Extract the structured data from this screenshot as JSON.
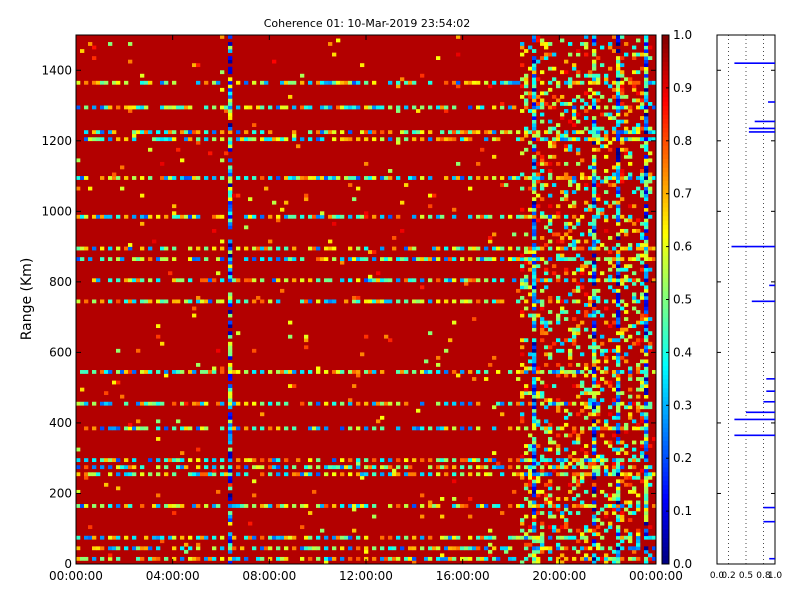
{
  "chart_data": [
    {
      "type": "heatmap",
      "title": "Coherence 01: 10-Mar-2019 23:54:02",
      "xlabel": "",
      "ylabel": "Range (Km)",
      "x_ticks": [
        "00:00:00",
        "04:00:00",
        "08:00:00",
        "12:00:00",
        "16:00:00",
        "20:00:00",
        "00:00:00"
      ],
      "y_ticks": [
        0,
        200,
        400,
        600,
        800,
        1000,
        1200,
        1400
      ],
      "ylim": [
        0,
        1500
      ],
      "x_range_hours": [
        0,
        24
      ],
      "clim": [
        0,
        1
      ],
      "colormap": "jet",
      "colorbar_ticks": [
        "0.0",
        "0.1",
        "0.2",
        "0.3",
        "0.4",
        "0.5",
        "0.6",
        "0.7",
        "0.8",
        "0.9",
        "1.0"
      ],
      "background_value": 0.95,
      "low_coherence_ranges_km": [
        15,
        45,
        75,
        160,
        250,
        270,
        295,
        380,
        450,
        540,
        740,
        800,
        860,
        890,
        980,
        1100,
        1200,
        1230,
        1290,
        1360
      ],
      "low_coherence_time_hours": [
        19.0,
        21.4,
        22.4,
        23.6,
        6.3
      ],
      "grid": false
    },
    {
      "type": "line",
      "title": "",
      "xlabel": "",
      "ylabel": "",
      "xlim": [
        0,
        1.0
      ],
      "x_ticks": [
        "0.0",
        "0.2",
        "0.5",
        "0.8",
        "1.0"
      ],
      "ylim": [
        0,
        1500
      ],
      "grid": true,
      "series": [
        {
          "points": [
            {
              "range": 15,
              "value": 0.9
            },
            {
              "range": 120,
              "value": 0.8
            },
            {
              "range": 160,
              "value": 0.8
            },
            {
              "range": 365,
              "value": 0.3
            },
            {
              "range": 410,
              "value": 0.3
            },
            {
              "range": 430,
              "value": 0.5
            },
            {
              "range": 460,
              "value": 0.8
            },
            {
              "range": 490,
              "value": 0.85
            },
            {
              "range": 525,
              "value": 0.85
            },
            {
              "range": 745,
              "value": 0.6
            },
            {
              "range": 790,
              "value": 0.9
            },
            {
              "range": 900,
              "value": 0.25
            },
            {
              "range": 1225,
              "value": 0.55
            },
            {
              "range": 1235,
              "value": 0.55
            },
            {
              "range": 1255,
              "value": 0.65
            },
            {
              "range": 1310,
              "value": 0.88
            },
            {
              "range": 1420,
              "value": 0.3
            }
          ]
        }
      ]
    }
  ]
}
